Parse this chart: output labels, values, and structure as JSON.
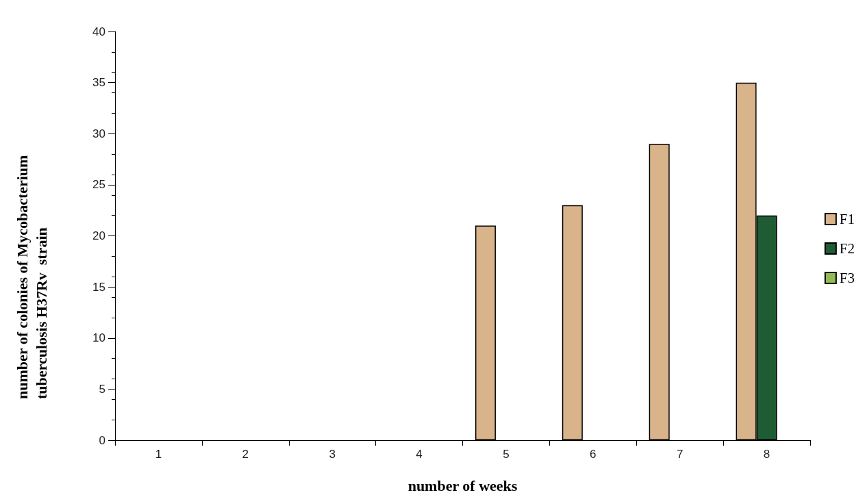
{
  "chart_data": {
    "type": "bar",
    "xlabel": "number of weeks",
    "ylabel": "number of colonies of Mycobacterium tuberculosis H37Rv  strain",
    "categories": [
      "1",
      "2",
      "3",
      "4",
      "5",
      "6",
      "7",
      "8"
    ],
    "series": [
      {
        "name": "F1",
        "color": "#d9b48a",
        "values": [
          0,
          0,
          0,
          0,
          21,
          23,
          29,
          35
        ]
      },
      {
        "name": "F2",
        "color": "#1f5c33",
        "values": [
          0,
          0,
          0,
          0,
          0,
          0,
          0,
          22
        ]
      },
      {
        "name": "F3",
        "color": "#92bb55",
        "values": [
          0,
          0,
          0,
          0,
          0,
          0,
          0,
          0
        ]
      }
    ],
    "ylim": [
      0,
      40
    ],
    "yticks": [
      0,
      5,
      10,
      15,
      20,
      25,
      30,
      35,
      40
    ],
    "grid": false,
    "legend": "right"
  }
}
